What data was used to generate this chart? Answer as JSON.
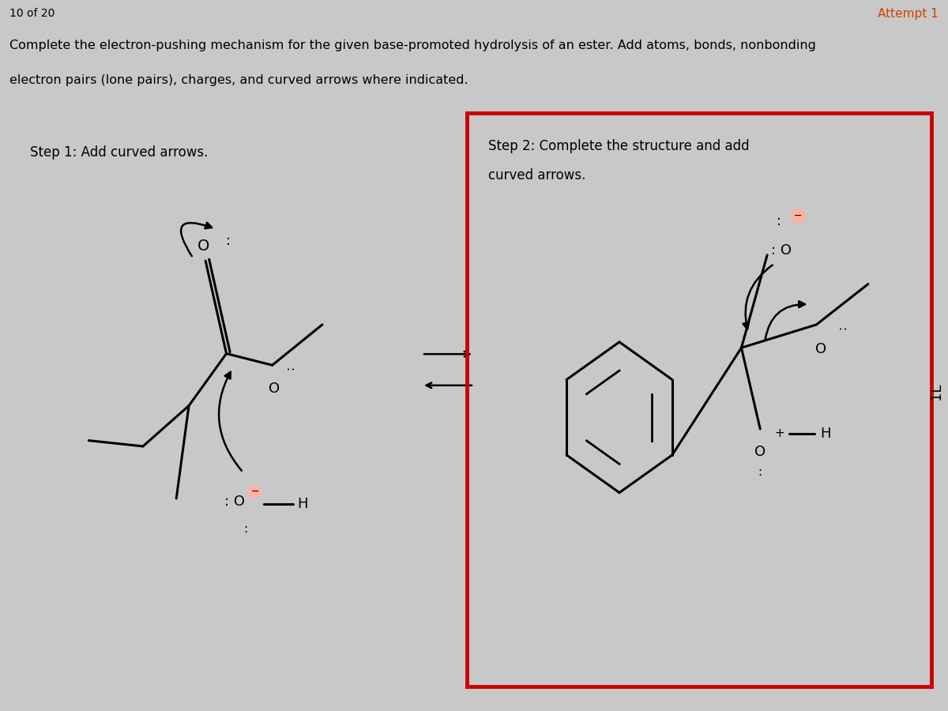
{
  "bg_color": "#c8c8c8",
  "header_bg": "#f0f0f0",
  "panel1_bg": "#c8c8c8",
  "panel2_bg": "#ffffff",
  "panel2_border": "#cc0000",
  "title_line1": "Complete the electron-pushing mechanism for the given base-promoted hydrolysis of an ester. Add atoms, bonds, nonbonding",
  "title_line2": "electron pairs (lone pairs), charges, and curved arrows where indicated.",
  "step1_label": "Step 1: Add curved arrows.",
  "step2_line1": "Step 2: Complete the structure and add",
  "step2_line2": "curved arrows.",
  "attempt_text": "Attempt 1",
  "page_text": "10 of 20",
  "charge_color": "#ffb0a0",
  "text_color": "#000000"
}
